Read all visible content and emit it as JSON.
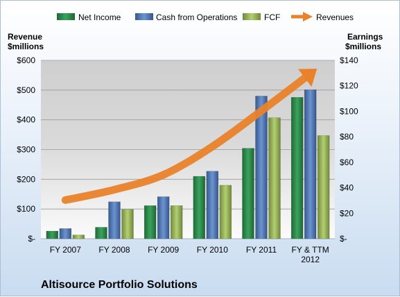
{
  "chart_data": {
    "type": "bar",
    "title": "Altisource Portfolio Solutions",
    "left_axis_label_line1": "Revenue",
    "left_axis_label_line2": "$millions",
    "right_axis_label_line1": "Earnings",
    "right_axis_label_line2": "$millions",
    "categories": [
      "FY 2007",
      "FY 2008",
      "FY 2009",
      "FY 2010",
      "FY 2011",
      "FY & TTM 2012"
    ],
    "category_lines": [
      [
        "FY 2007"
      ],
      [
        "FY 2008"
      ],
      [
        "FY 2009"
      ],
      [
        "FY 2010"
      ],
      [
        "FY 2011"
      ],
      [
        "FY & TTM",
        "2012"
      ]
    ],
    "left_ticks": [
      "$-",
      "$100",
      "$200",
      "$300",
      "$400",
      "$500",
      "$600"
    ],
    "right_ticks": [
      "$-",
      "$20",
      "$40",
      "$60",
      "$80",
      "$100",
      "$120",
      "$140"
    ],
    "ylim_left": [
      0,
      600
    ],
    "ylim_right": [
      0,
      140
    ],
    "series": [
      {
        "name": "Net Income",
        "axis": "right",
        "kind": "bar",
        "color": "#2e8b4e",
        "values": [
          6,
          9,
          26,
          49,
          71,
          111
        ]
      },
      {
        "name": "Cash from Operations",
        "axis": "right",
        "kind": "bar",
        "color": "#4f79b8",
        "values": [
          8,
          29,
          33,
          53,
          112,
          117
        ]
      },
      {
        "name": "FCF",
        "axis": "right",
        "kind": "bar",
        "color": "#9bbb59",
        "values": [
          3,
          23,
          26,
          42,
          95,
          81
        ]
      },
      {
        "name": "Revenues",
        "axis": "left",
        "kind": "arrow",
        "color": "#e9822a",
        "values": [
          130,
          165,
          215,
          310,
          430,
          555
        ]
      }
    ],
    "legend_position": "top"
  }
}
